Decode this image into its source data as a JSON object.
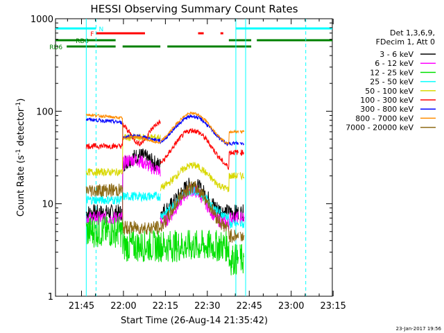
{
  "chart_data": {
    "type": "line",
    "title": "HESSI Observing Summary Count Rates",
    "xlabel": "Start Time (26-Aug-14 21:35:42)",
    "ylabel_main": "Count Rate (s",
    "ylabel_sup1": "-1",
    "ylabel_mid": " detector",
    "ylabel_sup2": "-1",
    "ylabel_end": ")",
    "yscale": "log",
    "ylim": [
      1,
      1000
    ],
    "xlim_minutes": [
      0,
      99
    ],
    "x_ticks": [
      {
        "label": "21:45",
        "minutes": 9.3
      },
      {
        "label": "22:00",
        "minutes": 24.3
      },
      {
        "label": "22:15",
        "minutes": 39.3
      },
      {
        "label": "22:30",
        "minutes": 54.3
      },
      {
        "label": "22:45",
        "minutes": 69.3
      },
      {
        "label": "23:00",
        "minutes": 84.3
      },
      {
        "label": "23:15",
        "minutes": 99.3
      }
    ],
    "y_ticks": [
      {
        "label": "1",
        "value": 1
      },
      {
        "label": "10",
        "value": 10
      },
      {
        "label": "100",
        "value": 100
      },
      {
        "label": "1000",
        "value": 1000
      }
    ],
    "legend_header": [
      "Det 1,3,6,9,",
      "FDecim 1, Att 0"
    ],
    "legend_placement": "right",
    "series": [
      {
        "name": "3 - 6 keV",
        "color": "#000000"
      },
      {
        "name": "6 - 12 keV",
        "color": "#ff00ff"
      },
      {
        "name": "12 - 25 keV",
        "color": "#00e000"
      },
      {
        "name": "25 - 50 keV",
        "color": "#00ffff"
      },
      {
        "name": "50 - 100 keV",
        "color": "#d8d800"
      },
      {
        "name": "100 - 300 keV",
        "color": "#ff0000"
      },
      {
        "name": "300 - 800 keV",
        "color": "#0000ff"
      },
      {
        "name": "800 - 7000 keV",
        "color": "#ff8c00"
      },
      {
        "name": "7000 - 20000 keV",
        "color": "#8b6914"
      }
    ],
    "flags": [
      {
        "label": "N",
        "color": "#00ffff",
        "segments": [
          [
            0,
            14.5
          ],
          [
            64.5,
            99
          ]
        ]
      },
      {
        "label": "F",
        "color": "#ff0000",
        "segments": [
          [
            14.5,
            32
          ],
          [
            51,
            53
          ],
          [
            59,
            60
          ]
        ]
      },
      {
        "label": "RD0",
        "color": "#008000",
        "segments": [
          [
            0,
            21.5
          ],
          [
            62,
            70
          ],
          [
            72,
            99
          ]
        ]
      },
      {
        "label": "RD6",
        "color": "#008000",
        "segments": [
          [
            4,
            21.5
          ],
          [
            24,
            37.5
          ],
          [
            40,
            70
          ]
        ]
      }
    ],
    "vlines": [
      {
        "minutes": 11,
        "style": "solid"
      },
      {
        "minutes": 14.5,
        "style": "dashed"
      },
      {
        "minutes": 64.5,
        "style": "solid"
      },
      {
        "minutes": 68,
        "style": "solid"
      },
      {
        "minutes": 89.5,
        "style": "dashed"
      }
    ],
    "timestamp": "23-Jan-2017 19:56"
  }
}
